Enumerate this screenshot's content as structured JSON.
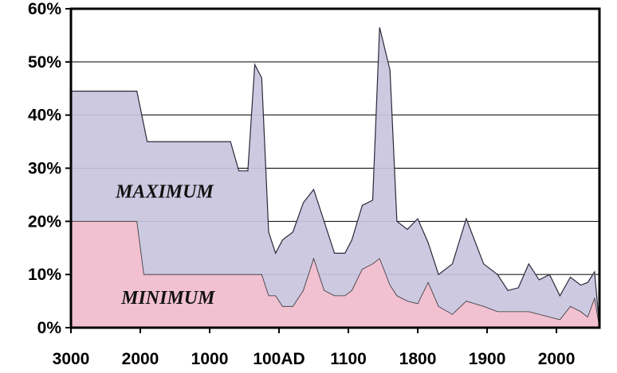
{
  "chart_data": {
    "type": "area",
    "title": "",
    "xlabel": "",
    "ylabel": "",
    "ylim": [
      0,
      60
    ],
    "grid": true,
    "x_tick_labels": [
      "3000",
      "2000",
      "1000",
      "100AD",
      "1100",
      "1800",
      "1900",
      "2000"
    ],
    "y_tick_labels": [
      "0%",
      "10%",
      "20%",
      "30%",
      "40%",
      "50%",
      "60%"
    ],
    "y_ticks": [
      0,
      10,
      20,
      30,
      40,
      50,
      60
    ],
    "x_positions": [
      0,
      1,
      2,
      3,
      4,
      5,
      6,
      7
    ],
    "colors": {
      "maximum": "#c8c4de",
      "minimum": "#f4bfcf",
      "grid": "#000000"
    },
    "series": [
      {
        "name": "MAXIMUM",
        "x": [
          0,
          0.95,
          1.1,
          1.3,
          1.5,
          1.95,
          2.3,
          2.42,
          2.55,
          2.65,
          2.75,
          2.85,
          2.95,
          3.05,
          3.2,
          3.35,
          3.5,
          3.65,
          3.8,
          3.95,
          4.05,
          4.2,
          4.35,
          4.45,
          4.6,
          4.7,
          4.85,
          5.0,
          5.15,
          5.3,
          5.5,
          5.7,
          5.95,
          6.15,
          6.3,
          6.45,
          6.6,
          6.75,
          6.9,
          7.05,
          7.2,
          7.35,
          7.45,
          7.55,
          7.62
        ],
        "values": [
          44.5,
          44.5,
          35,
          35,
          35,
          35,
          35,
          29.5,
          29.5,
          49.5,
          47,
          18,
          14,
          16.5,
          18,
          23.5,
          26,
          20,
          14,
          14,
          16.5,
          23,
          24,
          56.5,
          48.5,
          20,
          18.5,
          20.5,
          16,
          10,
          12,
          20.5,
          12,
          10,
          7,
          7.5,
          12,
          9,
          10,
          6,
          9.5,
          8,
          8.5,
          10.5,
          0
        ]
      },
      {
        "name": "MINIMUM",
        "x": [
          0,
          0.95,
          1.05,
          1.1,
          1.5,
          1.95,
          2.3,
          2.55,
          2.65,
          2.75,
          2.85,
          2.95,
          3.05,
          3.2,
          3.35,
          3.5,
          3.65,
          3.8,
          3.95,
          4.05,
          4.2,
          4.35,
          4.45,
          4.6,
          4.7,
          4.85,
          5.0,
          5.15,
          5.3,
          5.5,
          5.7,
          5.95,
          6.15,
          6.3,
          6.45,
          6.6,
          6.75,
          6.9,
          7.05,
          7.2,
          7.35,
          7.45,
          7.55,
          7.62
        ],
        "values": [
          20,
          20,
          10,
          10,
          10,
          10,
          10,
          10,
          10,
          10,
          6,
          6,
          4,
          4,
          7,
          13,
          7,
          6,
          6,
          7,
          11,
          12,
          13,
          8,
          6,
          5,
          4.5,
          8.5,
          4,
          2.5,
          5,
          4,
          3,
          3,
          3,
          3,
          2.5,
          2,
          1.5,
          4,
          3,
          2,
          5.5,
          0
        ]
      }
    ],
    "annotations": [
      {
        "text": "MAXIMUM",
        "x": 1.35,
        "y": 24.5
      },
      {
        "text": "MINIMUM",
        "x": 1.4,
        "y": 4.5
      }
    ]
  }
}
